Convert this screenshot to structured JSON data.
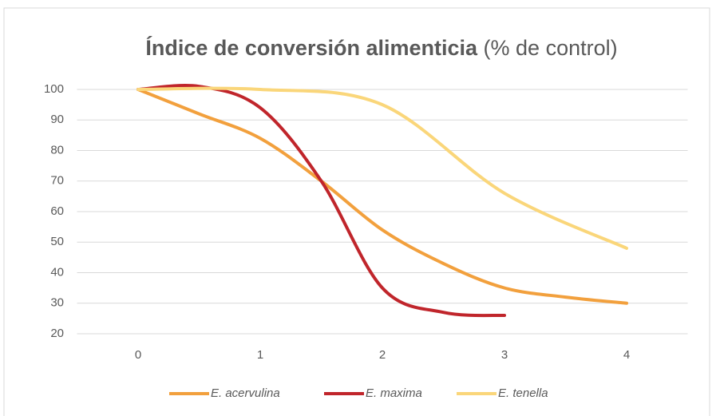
{
  "chart_data": {
    "type": "line",
    "title": "Índice de conversión alimenticia",
    "title_note": "(% de control)",
    "xlim": [
      -0.5,
      4.5
    ],
    "xticks": [
      0,
      1,
      2,
      3,
      4
    ],
    "ylim": [
      20,
      100
    ],
    "yticks": [
      20,
      30,
      40,
      50,
      60,
      70,
      80,
      90,
      100
    ],
    "grid": true,
    "legend": "bottom",
    "series": [
      {
        "name": "E. acervulina",
        "color": "#f2a03d",
        "x": [
          0,
          0.5,
          1,
          1.5,
          2,
          2.5,
          3,
          3.5,
          4
        ],
        "values": [
          100,
          92,
          84,
          70,
          54,
          43,
          35,
          32,
          30
        ]
      },
      {
        "name": "E. maxima",
        "color": "#c0252b",
        "x": [
          0,
          0.5,
          1,
          1.5,
          2,
          2.5,
          3
        ],
        "values": [
          100,
          101,
          94,
          70,
          35,
          27,
          26
        ]
      },
      {
        "name": "E. tenella",
        "color": "#fad67a",
        "x": [
          0,
          1,
          2,
          3,
          4
        ],
        "values": [
          100,
          100,
          95,
          66,
          48
        ]
      }
    ]
  }
}
